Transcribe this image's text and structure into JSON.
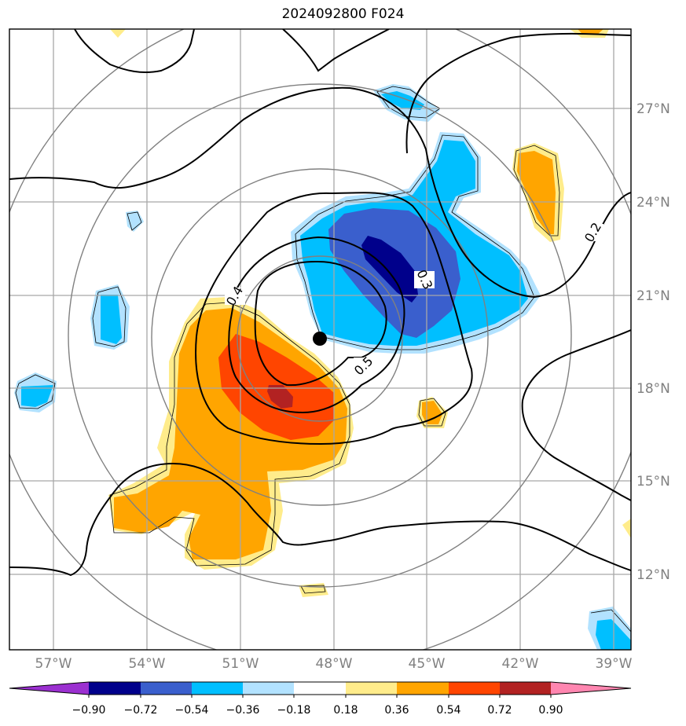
{
  "title": "2024092800 F024",
  "lat_labels": [
    "27°N",
    "24°N",
    "21°N",
    "18°N",
    "15°N",
    "12°N"
  ],
  "lon_labels": [
    "57°W",
    "54°W",
    "51°W",
    "48°W",
    "45°W",
    "42°W",
    "39°W"
  ],
  "contour_labels": [
    "0.2",
    "0.3",
    "0.4",
    "0.5"
  ],
  "colorbar": {
    "ticks": [
      "−0.90",
      "−0.72",
      "−0.54",
      "−0.36",
      "−0.18",
      "0.18",
      "0.36",
      "0.54",
      "0.72",
      "0.90"
    ],
    "colors": [
      "#9b30d0",
      "#00008b",
      "#3a5fcd",
      "#00bfff",
      "#b2e2ff",
      "#ffffff",
      "#ffec8b",
      "#ffa500",
      "#ff4500",
      "#b22222",
      "#ff86b0"
    ]
  },
  "storm_center": {
    "lon": -48.4,
    "lat": 19.6
  },
  "colors": {
    "frame": "#000000",
    "grid": "#a0a0a0",
    "rings": "#808080",
    "marker": "#000000"
  }
}
